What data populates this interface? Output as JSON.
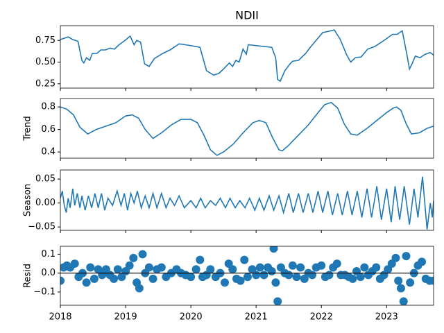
{
  "chart_data": [
    {
      "type": "line",
      "title": "NDII",
      "color": "#1f77b4",
      "x": [
        2018.0,
        2018.12,
        2018.19,
        2018.27,
        2018.33,
        2018.36,
        2018.4,
        2018.45,
        2018.49,
        2018.56,
        2018.62,
        2018.69,
        2018.76,
        2018.83,
        2018.9,
        2018.99,
        2019.07,
        2019.13,
        2019.17,
        2019.23,
        2019.29,
        2019.36,
        2019.44,
        2019.57,
        2019.68,
        2019.82,
        2020.0,
        2020.14,
        2020.24,
        2020.35,
        2020.43,
        2020.5,
        2020.59,
        2020.64,
        2020.69,
        2020.74,
        2020.8,
        2020.85,
        2020.88,
        2021.24,
        2021.3,
        2021.33,
        2021.37,
        2021.44,
        2021.52,
        2021.56,
        2021.65,
        2021.76,
        2021.83,
        2022.02,
        2022.2,
        2022.29,
        2022.39,
        2022.45,
        2022.52,
        2022.61,
        2022.71,
        2022.82,
        2022.98,
        2023.09,
        2023.16,
        2023.24,
        2023.32,
        2023.35,
        2023.39,
        2023.44,
        2023.51,
        2023.59,
        2023.67,
        2023.72
      ],
      "values": [
        0.76,
        0.79,
        0.76,
        0.74,
        0.52,
        0.49,
        0.55,
        0.52,
        0.6,
        0.6,
        0.64,
        0.64,
        0.66,
        0.65,
        0.7,
        0.75,
        0.8,
        0.7,
        0.75,
        0.73,
        0.48,
        0.45,
        0.54,
        0.6,
        0.64,
        0.71,
        0.69,
        0.67,
        0.4,
        0.35,
        0.37,
        0.42,
        0.49,
        0.45,
        0.52,
        0.5,
        0.65,
        0.59,
        0.7,
        0.67,
        0.55,
        0.3,
        0.28,
        0.4,
        0.48,
        0.51,
        0.52,
        0.6,
        0.67,
        0.84,
        0.87,
        0.76,
        0.58,
        0.5,
        0.55,
        0.56,
        0.65,
        0.68,
        0.76,
        0.82,
        0.82,
        0.86,
        0.55,
        0.42,
        0.48,
        0.57,
        0.55,
        0.59,
        0.61,
        0.58
      ],
      "xlim": [
        2018,
        2023.72
      ],
      "xticks": [
        2018,
        2019,
        2020,
        2021,
        2022,
        2023
      ],
      "xtick_labels": false,
      "ylim": [
        0.2,
        0.92
      ],
      "yticks": [
        0.25,
        {
          "value": 0.5,
          "label": "0.50"
        },
        0.75
      ]
    },
    {
      "type": "line",
      "ylabel": "Trend",
      "color": "#1f77b4",
      "x": [
        2018.0,
        2018.1,
        2018.2,
        2018.3,
        2018.42,
        2018.55,
        2018.7,
        2018.85,
        2019.0,
        2019.1,
        2019.2,
        2019.3,
        2019.42,
        2019.55,
        2019.7,
        2019.85,
        2020.0,
        2020.1,
        2020.2,
        2020.3,
        2020.4,
        2020.5,
        2020.65,
        2020.8,
        2020.95,
        2021.05,
        2021.15,
        2021.25,
        2021.35,
        2021.4,
        2021.5,
        2021.65,
        2021.8,
        2021.95,
        2022.05,
        2022.15,
        2022.25,
        2022.35,
        2022.45,
        2022.55,
        2022.7,
        2022.85,
        2023.0,
        2023.1,
        2023.15,
        2023.22,
        2023.3,
        2023.38,
        2023.5,
        2023.62,
        2023.72
      ],
      "values": [
        0.8,
        0.78,
        0.73,
        0.62,
        0.56,
        0.6,
        0.63,
        0.66,
        0.72,
        0.73,
        0.7,
        0.6,
        0.52,
        0.57,
        0.64,
        0.69,
        0.69,
        0.66,
        0.55,
        0.42,
        0.37,
        0.4,
        0.47,
        0.57,
        0.66,
        0.68,
        0.66,
        0.53,
        0.42,
        0.41,
        0.46,
        0.55,
        0.64,
        0.75,
        0.82,
        0.84,
        0.79,
        0.65,
        0.56,
        0.55,
        0.61,
        0.68,
        0.75,
        0.79,
        0.8,
        0.77,
        0.65,
        0.56,
        0.57,
        0.61,
        0.63
      ],
      "xlim": [
        2018,
        2023.72
      ],
      "xticks": [
        2018,
        2019,
        2020,
        2021,
        2022,
        2023
      ],
      "xtick_labels": false,
      "ylim": [
        0.345,
        0.875
      ],
      "yticks": [
        0.4,
        0.6,
        0.8
      ]
    },
    {
      "type": "line",
      "ylabel": "Season",
      "color": "#1f77b4",
      "x": [
        2018.0,
        2018.03,
        2018.06,
        2018.09,
        2018.12,
        2018.15,
        2018.19,
        2018.22,
        2018.26,
        2018.3,
        2018.33,
        2018.38,
        2018.43,
        2018.48,
        2018.53,
        2018.58,
        2018.63,
        2018.68,
        2018.73,
        2018.8,
        2018.87,
        2018.93,
        2018.98,
        2019.03,
        2019.08,
        2019.13,
        2019.18,
        2019.24,
        2019.3,
        2019.36,
        2019.42,
        2019.48,
        2019.55,
        2019.62,
        2019.68,
        2019.75,
        2019.82,
        2019.9,
        2020.0,
        2020.08,
        2020.15,
        2020.22,
        2020.3,
        2020.38,
        2020.45,
        2020.53,
        2020.6,
        2020.68,
        2020.75,
        2020.83,
        2020.9,
        2020.98,
        2021.05,
        2021.12,
        2021.2,
        2021.27,
        2021.35,
        2021.42,
        2021.5,
        2021.57,
        2021.65,
        2021.72,
        2021.8,
        2021.87,
        2021.95,
        2022.02,
        2022.1,
        2022.17,
        2022.25,
        2022.32,
        2022.4,
        2022.47,
        2022.55,
        2022.62,
        2022.7,
        2022.77,
        2022.85,
        2022.92,
        2023.0,
        2023.07,
        2023.13,
        2023.2,
        2023.27,
        2023.35,
        2023.42,
        2023.48,
        2023.55,
        2023.62,
        2023.67,
        2023.7,
        2023.72
      ],
      "values": [
        0.01,
        0.025,
        -0.005,
        -0.02,
        0.01,
        -0.01,
        0.03,
        -0.005,
        0.02,
        -0.01,
        0.015,
        -0.015,
        0.015,
        -0.01,
        0.02,
        -0.01,
        0.02,
        -0.015,
        0.01,
        -0.005,
        0.025,
        -0.005,
        0.02,
        -0.015,
        0.02,
        0.0,
        0.025,
        -0.01,
        0.015,
        -0.01,
        0.02,
        -0.01,
        0.02,
        -0.01,
        0.01,
        -0.005,
        0.015,
        -0.01,
        0.005,
        -0.01,
        0.01,
        -0.01,
        0.005,
        -0.005,
        0.01,
        -0.01,
        0.01,
        -0.01,
        0.005,
        -0.01,
        0.01,
        -0.015,
        0.01,
        -0.015,
        0.015,
        -0.015,
        0.015,
        -0.02,
        0.02,
        -0.02,
        0.02,
        -0.02,
        0.02,
        -0.02,
        0.025,
        -0.02,
        0.025,
        -0.025,
        0.02,
        -0.025,
        0.025,
        -0.025,
        0.025,
        -0.03,
        0.03,
        -0.03,
        0.035,
        -0.035,
        0.03,
        -0.04,
        0.035,
        -0.035,
        0.035,
        -0.045,
        0.03,
        -0.03,
        0.055,
        -0.055,
        0.0,
        -0.03,
        0.005
      ],
      "xlim": [
        2018,
        2023.72
      ],
      "xticks": [
        2018,
        2019,
        2020,
        2021,
        2022,
        2023
      ],
      "xtick_labels": false,
      "ylim": [
        -0.057,
        0.069
      ],
      "yticks": [
        0.05,
        {
          "value": 0,
          "label": "0.00"
        },
        {
          "value": -0.05,
          "label": "−0.05"
        }
      ]
    },
    {
      "type": "scatter",
      "ylabel": "Resid",
      "color": "#1f77b4",
      "hline": 0,
      "x": [
        2018.0,
        2018.05,
        2018.1,
        2018.15,
        2018.22,
        2018.28,
        2018.34,
        2018.4,
        2018.46,
        2018.52,
        2018.58,
        2018.64,
        2018.7,
        2018.76,
        2018.82,
        2018.88,
        2018.94,
        2019.0,
        2019.06,
        2019.12,
        2019.17,
        2019.21,
        2019.26,
        2019.3,
        2019.36,
        2019.42,
        2019.48,
        2019.55,
        2019.62,
        2019.7,
        2019.78,
        2019.85,
        2019.92,
        2020.0,
        2020.08,
        2020.14,
        2020.18,
        2020.24,
        2020.3,
        2020.38,
        2020.45,
        2020.52,
        2020.58,
        2020.64,
        2020.7,
        2020.76,
        2020.82,
        2020.87,
        2020.94,
        2021.0,
        2021.06,
        2021.12,
        2021.18,
        2021.24,
        2021.27,
        2021.3,
        2021.33,
        2021.38,
        2021.44,
        2021.5,
        2021.56,
        2021.62,
        2021.68,
        2021.74,
        2021.8,
        2021.86,
        2021.92,
        2022.0,
        2022.06,
        2022.12,
        2022.18,
        2022.24,
        2022.3,
        2022.36,
        2022.42,
        2022.48,
        2022.54,
        2022.6,
        2022.66,
        2022.72,
        2022.78,
        2022.84,
        2022.9,
        2022.96,
        2023.02,
        2023.08,
        2023.14,
        2023.18,
        2023.22,
        2023.26,
        2023.3,
        2023.36,
        2023.42,
        2023.48,
        2023.54,
        2023.6,
        2023.66,
        2023.72
      ],
      "values": [
        -0.04,
        0.03,
        0.04,
        0.03,
        0.05,
        -0.02,
        0.0,
        -0.05,
        0.03,
        -0.03,
        0.02,
        -0.01,
        0.02,
        -0.01,
        -0.03,
        0.02,
        -0.02,
        0.01,
        0.04,
        0.08,
        -0.05,
        -0.08,
        0.1,
        0.0,
        0.03,
        -0.03,
        0.02,
        0.03,
        -0.02,
        0.0,
        0.02,
        0.0,
        -0.01,
        -0.02,
        0.02,
        0.07,
        -0.02,
        -0.01,
        0.02,
        -0.02,
        0.0,
        -0.05,
        0.05,
        0.02,
        -0.03,
        -0.04,
        0.07,
        -0.02,
        0.02,
        -0.01,
        0.03,
        -0.01,
        0.03,
        0.01,
        0.13,
        -0.05,
        -0.15,
        0.03,
        0.0,
        -0.01,
        0.04,
        -0.02,
        0.03,
        -0.03,
        0.0,
        -0.01,
        0.03,
        0.04,
        -0.02,
        -0.01,
        0.03,
        0.05,
        -0.01,
        -0.01,
        -0.02,
        -0.03,
        0.01,
        -0.02,
        0.03,
        -0.01,
        0.01,
        0.03,
        -0.03,
        -0.01,
        0.02,
        0.05,
        0.08,
        -0.04,
        -0.08,
        -0.15,
        0.09,
        -0.05,
        0.0,
        0.04,
        0.06,
        -0.03,
        -0.04,
        -0.04
      ],
      "xlim": [
        2018,
        2023.72
      ],
      "xticks": [
        2018,
        2019,
        2020,
        2021,
        2022,
        2023
      ],
      "xtick_labels": true,
      "ylim": [
        -0.17,
        0.142
      ],
      "yticks": [
        0.1,
        {
          "value": 0,
          "label": "0.0"
        },
        {
          "value": -0.1,
          "label": "−0.1"
        }
      ]
    }
  ]
}
